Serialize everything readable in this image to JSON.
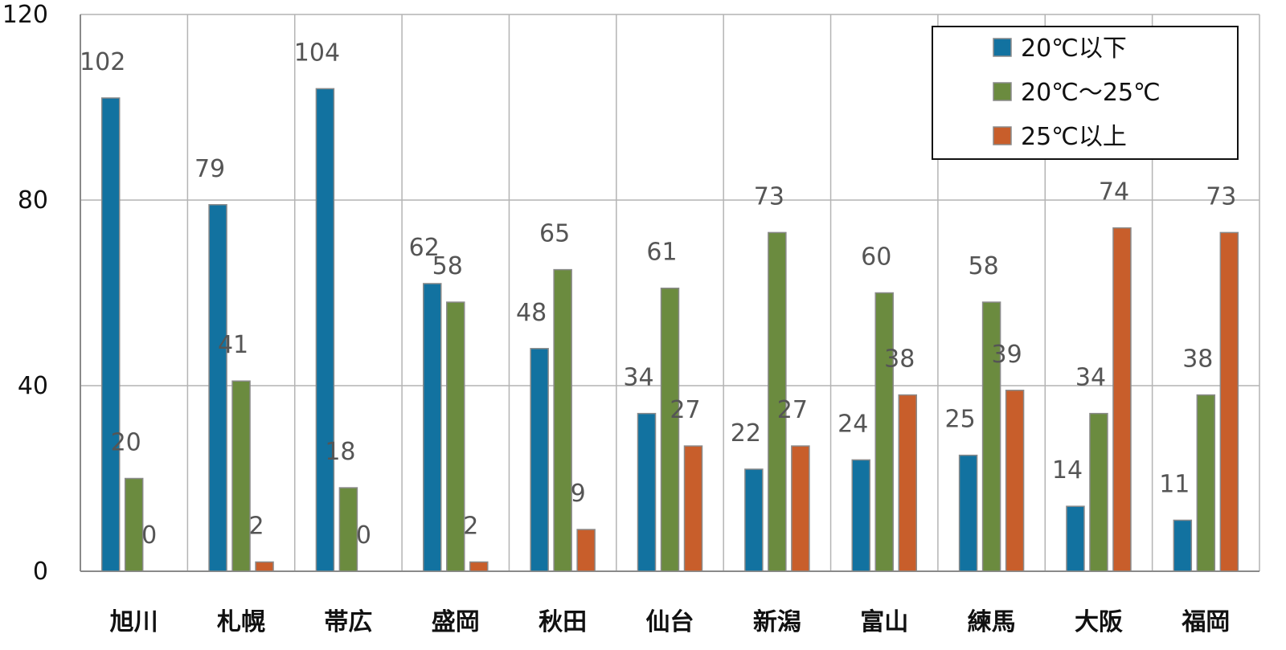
{
  "chart_data": {
    "type": "bar",
    "categories": [
      "旭川",
      "札幌",
      "帯広",
      "盛岡",
      "秋田",
      "仙台",
      "新潟",
      "富山",
      "練馬",
      "大阪",
      "福岡"
    ],
    "series": [
      {
        "name": "20℃以下",
        "color": "#1272a0",
        "values": [
          102,
          79,
          104,
          62,
          48,
          34,
          22,
          24,
          25,
          14,
          11
        ]
      },
      {
        "name": "20℃～25℃",
        "color": "#6b8b3f",
        "values": [
          20,
          41,
          18,
          58,
          65,
          61,
          73,
          60,
          58,
          34,
          38
        ]
      },
      {
        "name": "25℃以上",
        "color": "#c85e2b",
        "values": [
          0,
          2,
          0,
          2,
          9,
          27,
          27,
          38,
          39,
          74,
          73
        ]
      }
    ],
    "ylim": [
      0,
      120
    ],
    "yticks": [
      0,
      40,
      80,
      120
    ],
    "grid": true,
    "legend_position": "top-right",
    "bar_border_color": "#8a8a8a"
  }
}
